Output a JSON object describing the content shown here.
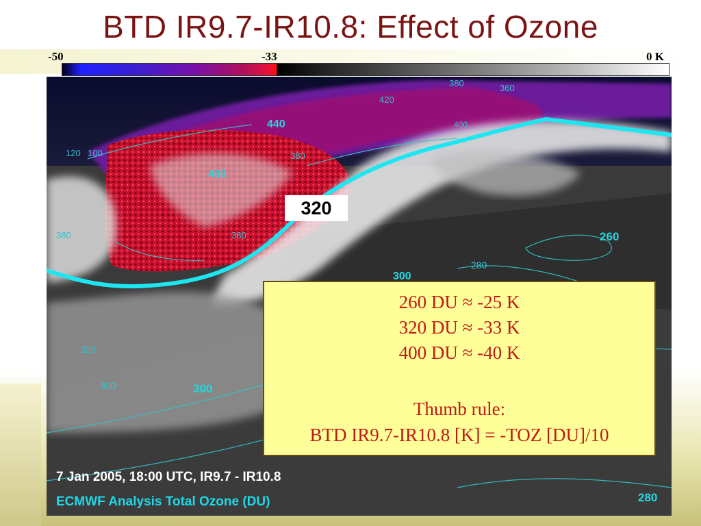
{
  "slide": {
    "title": "BTD IR9.7-IR10.8: Effect of Ozone"
  },
  "color_scale": {
    "min_label": "-50",
    "mid_label": "-33",
    "max_label": "0 K",
    "colors": {
      "low": "#2020ff",
      "purple": "#7a10a8",
      "red": "#ff1010",
      "black": "#000000",
      "white": "#ffffff"
    }
  },
  "map": {
    "highlight_contour_label": "320",
    "contour_labels": [
      "440",
      "400",
      "380",
      "360",
      "420",
      "380",
      "400",
      "100",
      "120",
      "380",
      "380",
      "260",
      "280",
      "300",
      "320",
      "300",
      "300",
      "280"
    ],
    "contour_color": "#26d8e0",
    "highlight_contour_color": "#1ee6f0"
  },
  "info_box": {
    "line1": "260 DU ≈ -25 K",
    "line2": "320 DU ≈ -33 K",
    "line3": "400 DU ≈ -40 K",
    "rule_title": "Thumb rule:",
    "rule_text": "BTD IR9.7-IR10.8 [K] = -TOZ [DU]/10"
  },
  "caption": {
    "line1": "7 Jan 2005, 18:00 UTC, IR9.7 - IR10.8",
    "line2": "ECMWF Analysis Total Ozone (DU)"
  }
}
